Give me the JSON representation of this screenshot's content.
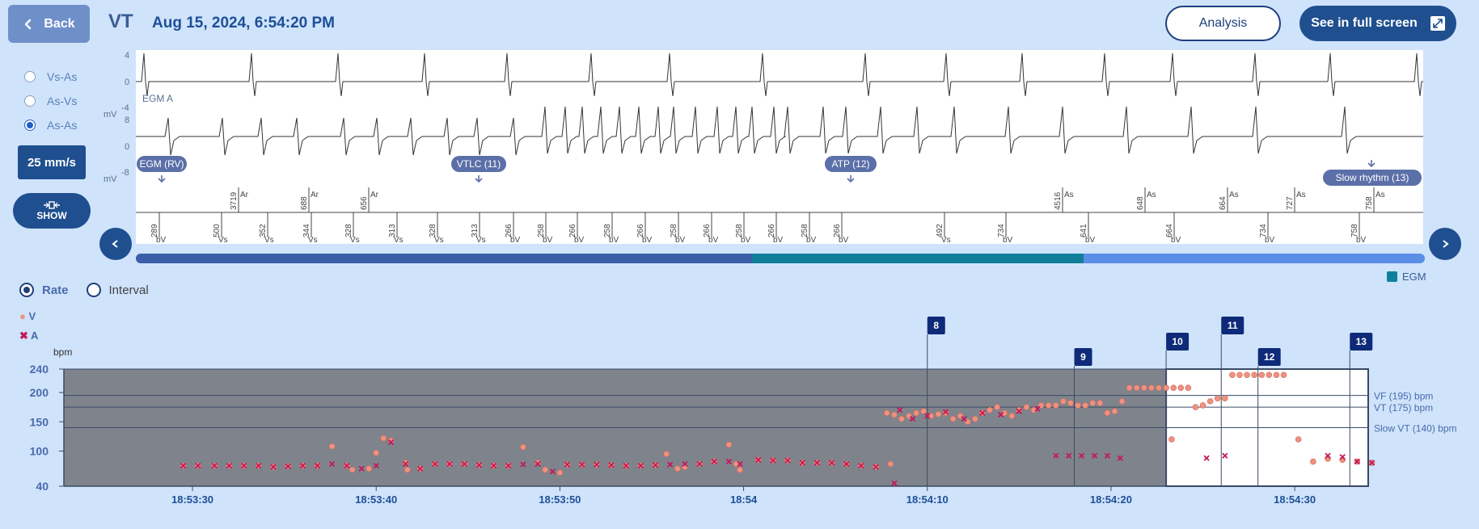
{
  "header": {
    "back_label": "Back",
    "episode_type": "VT",
    "episode_datetime": "Aug 15, 2024, 6:54:20 PM",
    "analysis_label": "Analysis",
    "fullscreen_label": "See in full screen"
  },
  "interval_options": [
    {
      "label": "Vs-As",
      "checked": false
    },
    {
      "label": "As-Vs",
      "checked": false
    },
    {
      "label": "As-As",
      "checked": true
    }
  ],
  "speed_label": "25 mm/s",
  "show_label": "SHOW",
  "egm": {
    "unit": "mV",
    "channel_a_label": "EGM A",
    "channel_a_ticks": [
      "4",
      "0",
      "-4"
    ],
    "channel_rv_ticks": [
      "8",
      "0",
      "-8"
    ],
    "annotations": [
      {
        "label": "EGM (RV)"
      },
      {
        "label": "VTLC (11)"
      },
      {
        "label": "ATP (12)"
      },
      {
        "label": "Slow rhythm (13)"
      }
    ],
    "atrial_markers": [
      {
        "interval": "3719",
        "tag": "Ar"
      },
      {
        "interval": "688",
        "tag": "Ar"
      },
      {
        "interval": "656",
        "tag": "Ar"
      },
      {
        "interval": "4516",
        "tag": "As"
      },
      {
        "interval": "648",
        "tag": "As"
      },
      {
        "interval": "664",
        "tag": "As"
      },
      {
        "interval": "727",
        "tag": "As"
      },
      {
        "interval": "758",
        "tag": "As"
      }
    ],
    "ventricular_markers": [
      {
        "interval": "289",
        "tag": "bV"
      },
      {
        "interval": "500",
        "tag": "Vs"
      },
      {
        "interval": "352",
        "tag": "Vs"
      },
      {
        "interval": "344",
        "tag": "Vs"
      },
      {
        "interval": "328",
        "tag": "Vs"
      },
      {
        "interval": "313",
        "tag": "Vs"
      },
      {
        "interval": "328",
        "tag": "Vs"
      },
      {
        "interval": "313",
        "tag": "Vs"
      },
      {
        "interval": "266",
        "tag": "bV"
      },
      {
        "interval": "258",
        "tag": "bV"
      },
      {
        "interval": "266",
        "tag": "bV"
      },
      {
        "interval": "258",
        "tag": "bV"
      },
      {
        "interval": "266",
        "tag": "bV"
      },
      {
        "interval": "258",
        "tag": "bV"
      },
      {
        "interval": "266",
        "tag": "bV"
      },
      {
        "interval": "258",
        "tag": "bV"
      },
      {
        "interval": "266",
        "tag": "bV"
      },
      {
        "interval": "258",
        "tag": "bV"
      },
      {
        "interval": "266",
        "tag": "bV"
      },
      {
        "interval": "492",
        "tag": "Vs"
      },
      {
        "interval": "734",
        "tag": "bV"
      },
      {
        "interval": "641",
        "tag": "bV"
      },
      {
        "interval": "664",
        "tag": "bV"
      },
      {
        "interval": "734",
        "tag": "bV"
      },
      {
        "interval": "758",
        "tag": "bV"
      }
    ]
  },
  "timeline": {
    "segments": [
      {
        "fraction": 0.478,
        "color": "#3a5ea8"
      },
      {
        "fraction": 0.257,
        "color": "#0f7f9c"
      },
      {
        "fraction": 0.265,
        "color": "#5a8de6"
      }
    ],
    "legend_label": "EGM"
  },
  "rate_mode": {
    "rate_label": "Rate",
    "interval_label": "Interval",
    "selected": "Rate"
  },
  "series_legend": [
    {
      "symbol": "●",
      "label": "V",
      "color": "#f08f7e"
    },
    {
      "symbol": "✖",
      "label": "A",
      "color": "#c2185b"
    }
  ],
  "chart_data": {
    "type": "scatter",
    "ylabel": "bpm",
    "ylim": [
      40,
      240
    ],
    "yticks": [
      40,
      100,
      150,
      200,
      240
    ],
    "xlim": [
      "18:53:23",
      "18:54:34"
    ],
    "xticks": [
      {
        "t": "18:53:30",
        "label": "18:53:30"
      },
      {
        "t": "18:53:40",
        "label": "18:53:40"
      },
      {
        "t": "18:53:50",
        "label": "18:53:50"
      },
      {
        "t": "18:54:00",
        "label": "18:54"
      },
      {
        "t": "18:54:10",
        "label": "18:54:10"
      },
      {
        "t": "18:54:20",
        "label": "18:54:20"
      },
      {
        "t": "18:54:30",
        "label": "18:54:30"
      }
    ],
    "thresholds": [
      {
        "label": "VF (195) bpm",
        "value": 195
      },
      {
        "label": "VT (175) bpm",
        "value": 175
      },
      {
        "label": "Slow VT (140) bpm",
        "value": 140
      }
    ],
    "episode_markers": [
      {
        "label": "8",
        "t": "18:54:10"
      },
      {
        "label": "9",
        "t": "18:54:18"
      },
      {
        "label": "10",
        "t": "18:54:23"
      },
      {
        "label": "11",
        "t": "18:54:26"
      },
      {
        "label": "12",
        "t": "18:54:28"
      },
      {
        "label": "13",
        "t": "18:54:33"
      }
    ],
    "series": [
      {
        "name": "V",
        "color": "#f0907f",
        "points": [
          [
            -30.5,
            75
          ],
          [
            -29.7,
            75
          ],
          [
            -28.8,
            75
          ],
          [
            -28,
            75
          ],
          [
            -27.2,
            75
          ],
          [
            -26.4,
            75
          ],
          [
            -25.6,
            73
          ],
          [
            -24.8,
            74
          ],
          [
            -24,
            75
          ],
          [
            -23.2,
            75
          ],
          [
            -22.4,
            108
          ],
          [
            -21.6,
            75
          ],
          [
            -21.3,
            68
          ],
          [
            -20.4,
            70
          ],
          [
            -20,
            97
          ],
          [
            -19.6,
            122
          ],
          [
            -19.2,
            118
          ],
          [
            -18.4,
            80
          ],
          [
            -18.3,
            68
          ],
          [
            -17.6,
            70
          ],
          [
            -16.8,
            78
          ],
          [
            -16,
            78
          ],
          [
            -15.2,
            78
          ],
          [
            -14.4,
            76
          ],
          [
            -13.6,
            75
          ],
          [
            -12.8,
            75
          ],
          [
            -12,
            107
          ],
          [
            -11.2,
            80
          ],
          [
            -10.8,
            68
          ],
          [
            -10,
            63
          ],
          [
            -9.6,
            77
          ],
          [
            -8.8,
            77
          ],
          [
            -8,
            77
          ],
          [
            -7.2,
            76
          ],
          [
            -6.4,
            75
          ],
          [
            -5.6,
            75
          ],
          [
            -4.8,
            76
          ],
          [
            -4.2,
            95
          ],
          [
            -3.6,
            70
          ],
          [
            -3.2,
            73
          ],
          [
            -2.4,
            78
          ],
          [
            -1.6,
            82
          ],
          [
            -0.8,
            111
          ],
          [
            -0.4,
            78
          ],
          [
            -0.2,
            68
          ],
          [
            0.8,
            85
          ],
          [
            1.6,
            84
          ],
          [
            2.4,
            84
          ],
          [
            3.2,
            80
          ],
          [
            4,
            80
          ],
          [
            4.8,
            80
          ],
          [
            5.6,
            78
          ],
          [
            6.4,
            75
          ],
          [
            7.2,
            73
          ],
          [
            8,
            78
          ],
          [
            7.8,
            165
          ],
          [
            8.2,
            162
          ],
          [
            8.6,
            155
          ],
          [
            9,
            160
          ],
          [
            9.4,
            165
          ],
          [
            9.8,
            168
          ],
          [
            10.2,
            160
          ],
          [
            10.6,
            163
          ],
          [
            11,
            165
          ],
          [
            11.4,
            155
          ],
          [
            11.8,
            160
          ],
          [
            12.2,
            150
          ],
          [
            12.6,
            155
          ],
          [
            13,
            165
          ],
          [
            13.4,
            170
          ],
          [
            13.8,
            175
          ],
          [
            14.2,
            165
          ],
          [
            14.6,
            160
          ],
          [
            15,
            170
          ],
          [
            15.4,
            175
          ],
          [
            15.8,
            170
          ],
          [
            16.2,
            178
          ],
          [
            16.6,
            178
          ],
          [
            17,
            178
          ],
          [
            17.4,
            185
          ],
          [
            17.8,
            182
          ],
          [
            18.2,
            178
          ],
          [
            18.6,
            178
          ],
          [
            19,
            182
          ],
          [
            19.4,
            182
          ],
          [
            19.8,
            165
          ],
          [
            20.2,
            168
          ],
          [
            20.6,
            185
          ],
          [
            21,
            208
          ],
          [
            21.4,
            208
          ],
          [
            21.8,
            208
          ],
          [
            22.2,
            208
          ],
          [
            22.6,
            208
          ],
          [
            23,
            208
          ],
          [
            23.4,
            208
          ],
          [
            23.8,
            208
          ],
          [
            24.2,
            208
          ],
          [
            23.3,
            120
          ],
          [
            24.6,
            175
          ],
          [
            25,
            178
          ],
          [
            25.4,
            185
          ],
          [
            25.8,
            190
          ],
          [
            26.2,
            190
          ],
          [
            26.6,
            230
          ],
          [
            27,
            230
          ],
          [
            27.4,
            230
          ],
          [
            27.8,
            230
          ],
          [
            28.2,
            230
          ],
          [
            28.6,
            230
          ],
          [
            29,
            230
          ],
          [
            29.4,
            230
          ],
          [
            30.2,
            120
          ],
          [
            31,
            82
          ],
          [
            31.8,
            87
          ],
          [
            32.6,
            85
          ],
          [
            33.4,
            82
          ],
          [
            34.2,
            80
          ]
        ]
      },
      {
        "name": "A",
        "color": "#c2185b",
        "points": [
          [
            -30.5,
            75
          ],
          [
            -29.7,
            75
          ],
          [
            -28.8,
            75
          ],
          [
            -28,
            75
          ],
          [
            -27.2,
            75
          ],
          [
            -26.4,
            75
          ],
          [
            -25.6,
            73
          ],
          [
            -24.8,
            74
          ],
          [
            -24,
            75
          ],
          [
            -23.2,
            75
          ],
          [
            -22.4,
            78
          ],
          [
            -21.6,
            75
          ],
          [
            -20.8,
            70
          ],
          [
            -20,
            75
          ],
          [
            -19.2,
            115
          ],
          [
            -18.4,
            78
          ],
          [
            -17.6,
            70
          ],
          [
            -16.8,
            78
          ],
          [
            -16,
            78
          ],
          [
            -15.2,
            78
          ],
          [
            -14.4,
            76
          ],
          [
            -13.6,
            75
          ],
          [
            -12.8,
            75
          ],
          [
            -12,
            77
          ],
          [
            -11.2,
            78
          ],
          [
            -10.4,
            65
          ],
          [
            -9.6,
            77
          ],
          [
            -8.8,
            77
          ],
          [
            -8,
            77
          ],
          [
            -7.2,
            76
          ],
          [
            -6.4,
            75
          ],
          [
            -5.6,
            75
          ],
          [
            -4.8,
            76
          ],
          [
            -4,
            77
          ],
          [
            -3.2,
            78
          ],
          [
            -2.4,
            78
          ],
          [
            -1.6,
            82
          ],
          [
            -0.8,
            82
          ],
          [
            -0.2,
            78
          ],
          [
            0.8,
            85
          ],
          [
            1.6,
            84
          ],
          [
            2.4,
            84
          ],
          [
            3.2,
            80
          ],
          [
            4,
            80
          ],
          [
            4.8,
            80
          ],
          [
            5.6,
            78
          ],
          [
            6.4,
            75
          ],
          [
            7.2,
            73
          ],
          [
            8.2,
            45
          ],
          [
            8.5,
            170
          ],
          [
            9.2,
            155
          ],
          [
            10,
            160
          ],
          [
            11,
            167
          ],
          [
            12,
            155
          ],
          [
            13,
            165
          ],
          [
            14,
            162
          ],
          [
            15,
            168
          ],
          [
            16,
            172
          ],
          [
            17,
            92
          ],
          [
            17.7,
            92
          ],
          [
            18.4,
            92
          ],
          [
            19.1,
            92
          ],
          [
            19.8,
            92
          ],
          [
            20.5,
            88
          ],
          [
            25.2,
            88
          ],
          [
            26.2,
            92
          ],
          [
            31.8,
            92
          ],
          [
            32.6,
            90
          ],
          [
            33.4,
            82
          ],
          [
            34.2,
            80
          ]
        ]
      }
    ]
  }
}
